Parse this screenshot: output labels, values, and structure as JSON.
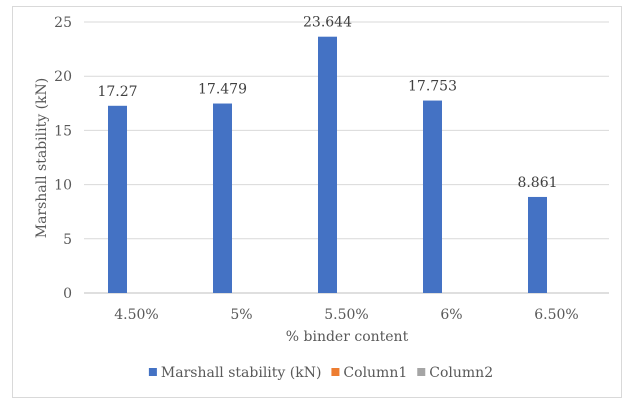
{
  "chart_data": {
    "type": "bar",
    "title": "",
    "xlabel": "% binder content",
    "ylabel": "Marshall stability (kN)",
    "categories": [
      "4.50%",
      "5%",
      "5.50%",
      "6%",
      "6.50%"
    ],
    "ylim": [
      0,
      25
    ],
    "yticks": [
      0,
      5,
      10,
      15,
      20,
      25
    ],
    "grid": true,
    "legend_position": "bottom",
    "series": [
      {
        "name": "Marshall stability (kN)",
        "color": "#4472c4",
        "values": [
          17.27,
          17.479,
          23.644,
          17.753,
          8.861
        ],
        "labels": [
          "17.27",
          "17.479",
          "23.644",
          "17.753",
          "8.861"
        ]
      },
      {
        "name": "Column1",
        "color": "#ed7d31",
        "values": [
          null,
          null,
          null,
          null,
          null
        ]
      },
      {
        "name": "Column2",
        "color": "#a5a5a5",
        "values": [
          null,
          null,
          null,
          null,
          null
        ]
      }
    ]
  }
}
